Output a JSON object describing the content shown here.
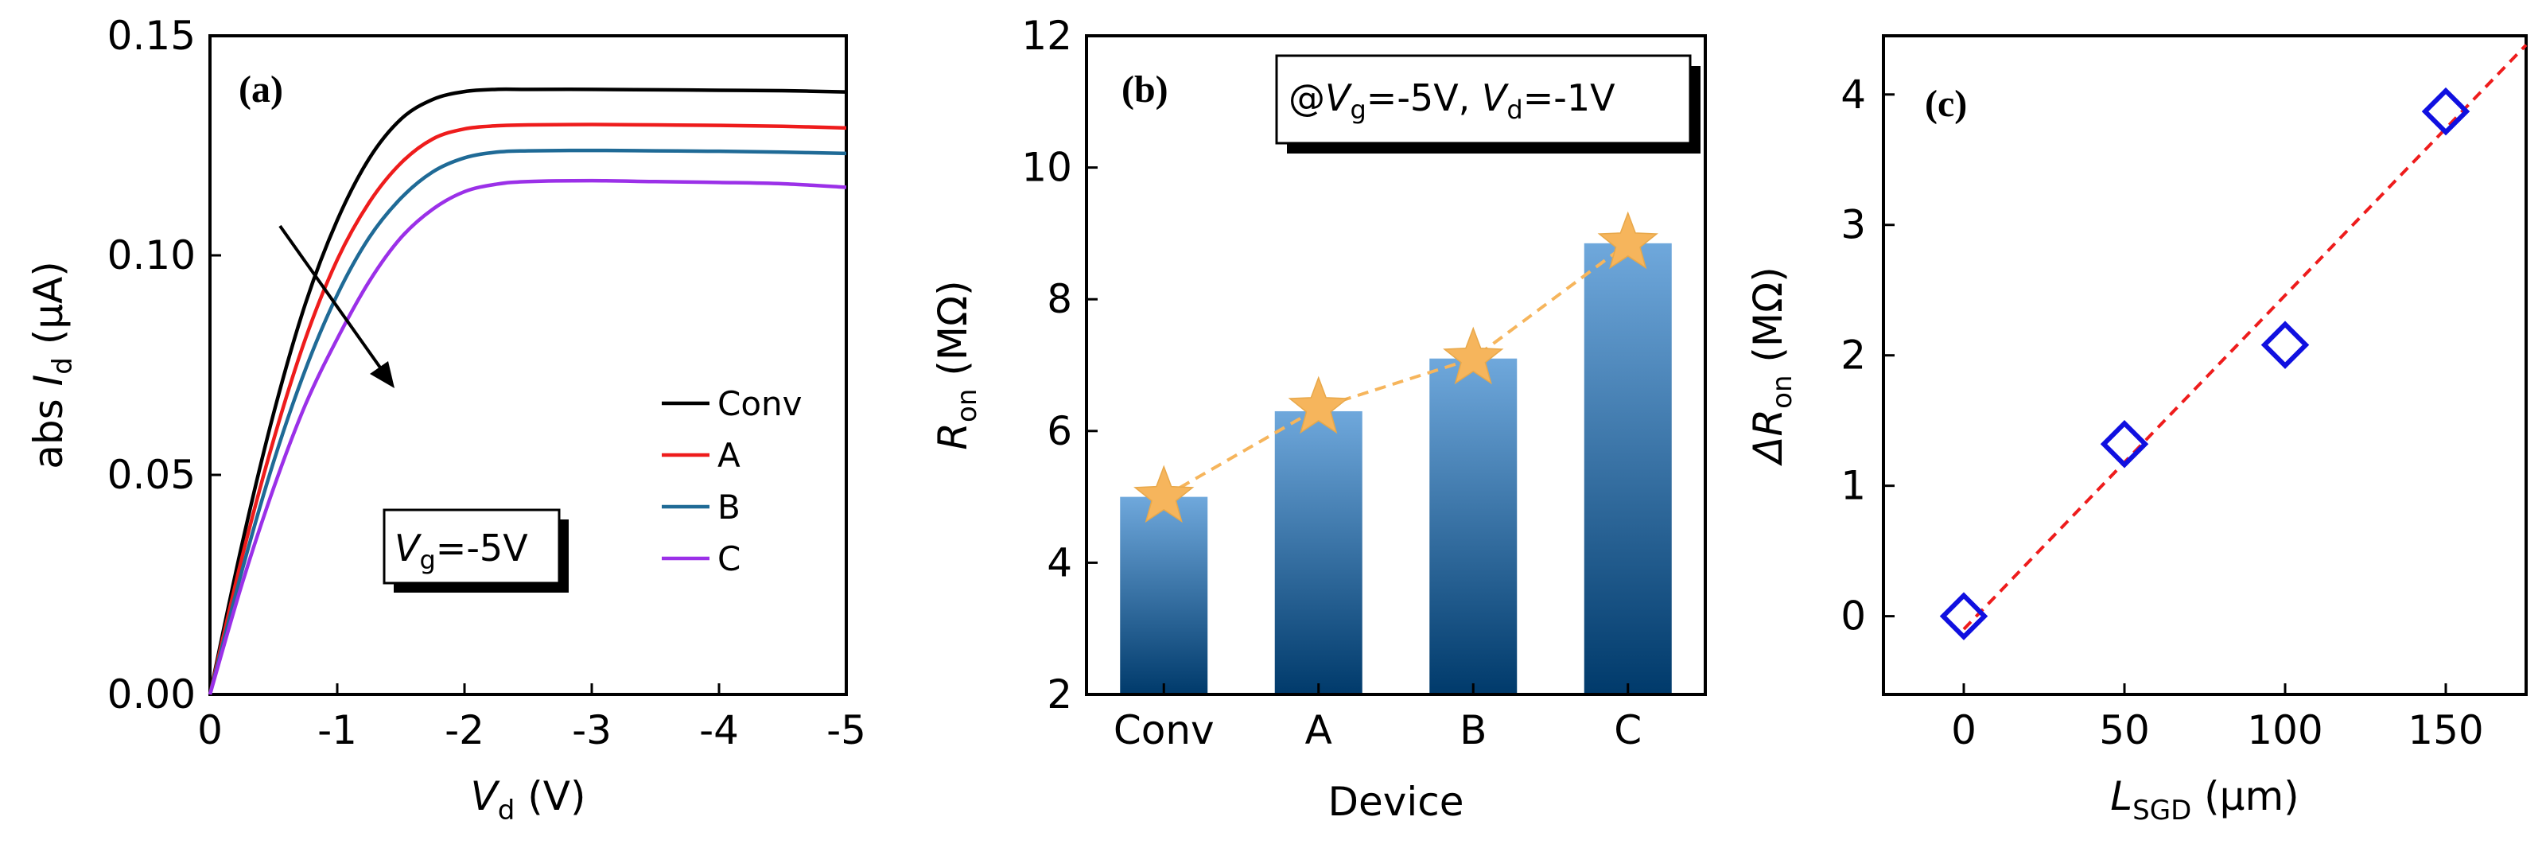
{
  "chart_data": [
    {
      "panel": "(a)",
      "type": "line",
      "xlabel_main": "V",
      "xlabel_sub": "d",
      "xlabel_unit": " (V)",
      "ylabel_prefix": "abs ",
      "ylabel_main": "I",
      "ylabel_sub": "d",
      "ylabel_unit": " (μA)",
      "xlim": [
        0,
        5
      ],
      "ylim": [
        0,
        0.15
      ],
      "xticks": [
        0,
        1,
        2,
        3,
        4,
        5
      ],
      "xtick_labels": [
        "0",
        "-1",
        "-2",
        "-3",
        "-4",
        "-5"
      ],
      "yticks": [
        0,
        0.05,
        0.1,
        0.15
      ],
      "ytick_labels": [
        "0.00",
        "0.05",
        "0.10",
        "0.15"
      ],
      "annotation": {
        "main": "V",
        "sub": "g",
        "rest": "=-5V"
      },
      "legend_position": "lower-right",
      "series": [
        {
          "name": "Conv",
          "color": "#000000",
          "x": [
            0,
            0.25,
            0.5,
            0.75,
            1.0,
            1.25,
            1.5,
            1.75,
            2.0,
            2.25,
            2.5,
            3.0,
            3.5,
            4.0,
            4.5,
            5.0
          ],
          "y": [
            0,
            0.034,
            0.064,
            0.089,
            0.108,
            0.122,
            0.131,
            0.1355,
            0.1373,
            0.1378,
            0.1378,
            0.1378,
            0.1377,
            0.1376,
            0.1375,
            0.1372
          ]
        },
        {
          "name": "A",
          "color": "#ee1c1c",
          "x": [
            0,
            0.25,
            0.5,
            0.75,
            1.0,
            1.25,
            1.5,
            1.75,
            2.0,
            2.25,
            2.5,
            3.0,
            3.5,
            4.0,
            4.5,
            5.0
          ],
          "y": [
            0,
            0.031,
            0.058,
            0.081,
            0.099,
            0.112,
            0.121,
            0.1265,
            0.1288,
            0.1295,
            0.1297,
            0.1298,
            0.1297,
            0.1296,
            0.1294,
            0.129
          ]
        },
        {
          "name": "B",
          "color": "#1f6a96",
          "x": [
            0,
            0.25,
            0.5,
            0.75,
            1.0,
            1.25,
            1.5,
            1.75,
            2.0,
            2.25,
            2.5,
            3.0,
            3.5,
            4.0,
            4.5,
            5.0
          ],
          "y": [
            0,
            0.028,
            0.053,
            0.074,
            0.091,
            0.104,
            0.113,
            0.119,
            0.1222,
            0.1235,
            0.1238,
            0.1239,
            0.1238,
            0.1237,
            0.1235,
            0.1232
          ]
        },
        {
          "name": "C",
          "color": "#9b30e8",
          "x": [
            0,
            0.25,
            0.5,
            0.75,
            1.0,
            1.25,
            1.5,
            1.75,
            2.0,
            2.25,
            2.5,
            3.0,
            3.5,
            4.0,
            4.5,
            5.0
          ],
          "y": [
            0,
            0.025,
            0.047,
            0.066,
            0.081,
            0.094,
            0.104,
            0.1105,
            0.1145,
            0.1162,
            0.1168,
            0.117,
            0.1168,
            0.1166,
            0.1163,
            0.1155
          ]
        }
      ]
    },
    {
      "panel": "(b)",
      "type": "bar",
      "xlabel": "Device",
      "ylabel_main": "R",
      "ylabel_sub": "on",
      "ylabel_unit": " (MΩ)",
      "ylim": [
        2,
        12
      ],
      "yticks": [
        2,
        4,
        6,
        8,
        10,
        12
      ],
      "categories": [
        "Conv",
        "A",
        "B",
        "C"
      ],
      "values": [
        5.0,
        6.3,
        7.1,
        8.85
      ],
      "star_values": [
        5.0,
        6.35,
        7.1,
        8.85
      ],
      "bar_gradient": [
        "#6fa8dc",
        "#003a6b"
      ],
      "star_color": "#f6b55c",
      "annotation": {
        "p1": "@",
        "m1": "V",
        "s1": "g",
        "p2": "=-5V, ",
        "m2": "V",
        "s2": "d",
        "p3": "=-1V"
      }
    },
    {
      "panel": "(c)",
      "type": "scatter",
      "xlabel_main": "L",
      "xlabel_sub": "SGD",
      "xlabel_unit": " (μm)",
      "ylabel_main": "ΔR",
      "ylabel_sub": "on",
      "ylabel_unit": " (MΩ)",
      "xlim": [
        -25,
        175
      ],
      "ylim": [
        -0.6,
        4.45
      ],
      "xticks": [
        0,
        50,
        100,
        150
      ],
      "yticks": [
        0,
        1,
        2,
        3,
        4
      ],
      "x": [
        0,
        50,
        100,
        150
      ],
      "y": [
        0,
        1.32,
        2.08,
        3.87
      ],
      "marker_color": "#1010e0",
      "fit_color": "#ee1c1c",
      "fit": {
        "slope": 0.0256,
        "intercept": -0.1
      }
    }
  ]
}
